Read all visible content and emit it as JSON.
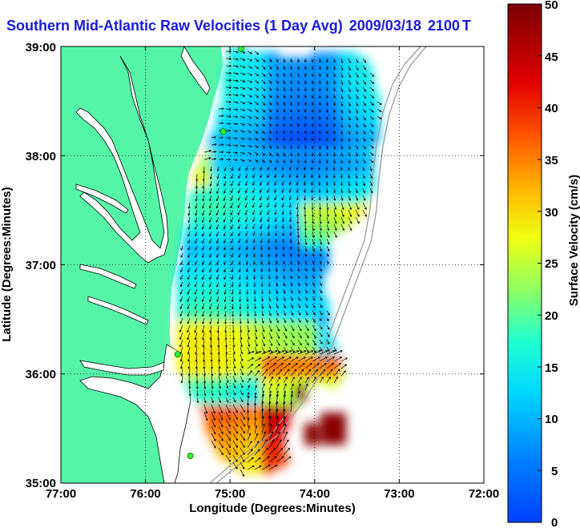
{
  "title": {
    "text": "Southern Mid-Atlantic Raw Velocities (1 Day Avg)",
    "date": "2009/03/18",
    "time": "2100",
    "tail": "T"
  },
  "axes": {
    "xlabel": "Longitude (Degrees:Minutes)",
    "ylabel": "Latitude (Degrees:Minutes)",
    "xticks": [
      "77:00",
      "76:00",
      "75:00",
      "74:00",
      "73:00",
      "72:00"
    ],
    "yticks": [
      "39:00",
      "38:00",
      "37:00",
      "36:00",
      "35:00"
    ],
    "xlim": [
      -77,
      -72
    ],
    "ylim": [
      35,
      39
    ],
    "grid": "dotted"
  },
  "colorbar": {
    "label": "Surface Velocity (cm/s)",
    "ticks": [
      "50",
      "45",
      "40",
      "35",
      "30",
      "25",
      "20",
      "15",
      "10",
      "5",
      "0"
    ],
    "min": 0,
    "max": 50,
    "colormap": "jet",
    "land_color": "#55f5a8"
  },
  "stations": [
    {
      "lon": -74.87,
      "lat": 38.98
    },
    {
      "lon": -75.08,
      "lat": 38.22
    },
    {
      "lon": -75.62,
      "lat": 36.18
    },
    {
      "lon": -75.47,
      "lat": 35.25
    }
  ]
}
